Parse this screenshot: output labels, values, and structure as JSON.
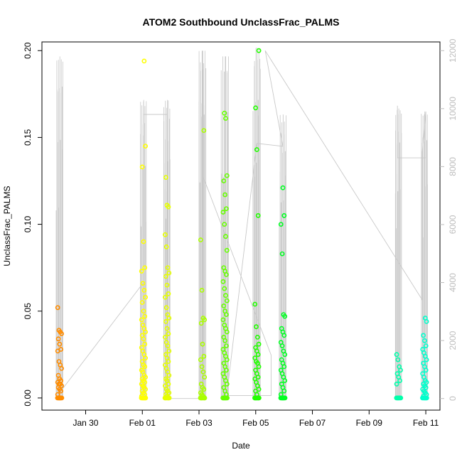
{
  "chart_data": {
    "type": "scatter",
    "title": "ATOM2 Southbound UnclassFrac_PALMS",
    "xlabel": "Date",
    "ylabel": "UnclassFrac_PALMS",
    "xlim": [
      "2017-01-28T11:00",
      "2017-02-11T12:00"
    ],
    "ylim": [
      -0.007,
      0.205
    ],
    "y2lim": [
      -400,
      12300
    ],
    "x_ticks": [
      {
        "x": "2017-01-30",
        "label": "Jan 30"
      },
      {
        "x": "2017-02-01",
        "label": "Feb 01"
      },
      {
        "x": "2017-02-03",
        "label": "Feb 03"
      },
      {
        "x": "2017-02-05",
        "label": "Feb 05"
      },
      {
        "x": "2017-02-07",
        "label": "Feb 07"
      },
      {
        "x": "2017-02-09",
        "label": "Feb 09"
      },
      {
        "x": "2017-02-11",
        "label": "Feb 11"
      }
    ],
    "y_ticks": [
      {
        "y": 0.0,
        "label": "0.00"
      },
      {
        "y": 0.05,
        "label": "0.05"
      },
      {
        "y": 0.1,
        "label": "0.10"
      },
      {
        "y": 0.15,
        "label": "0.15"
      },
      {
        "y": 0.2,
        "label": "0.20"
      }
    ],
    "y2_ticks": [
      {
        "y": 0,
        "label": "0"
      },
      {
        "y": 2000,
        "label": "2000"
      },
      {
        "x": null,
        "y": 4000,
        "label": "4000"
      },
      {
        "y": 6000,
        "label": "6000"
      },
      {
        "y": 8000,
        "label": "8000"
      },
      {
        "y": 10000,
        "label": "10000"
      },
      {
        "y": 12000,
        "label": "12000"
      }
    ],
    "altitude_color": "#c8c8c8",
    "flights": [
      {
        "name": "flight-jan29",
        "center": "2017-01-29T02:00",
        "color": "#ff8c00",
        "ymax": 0.052,
        "values": [
          0.052,
          0.039,
          0.038,
          0.037,
          0.034,
          0.031,
          0.028,
          0.027,
          0.021,
          0.019,
          0.017,
          0.013,
          0.011,
          0.01,
          0.009,
          0.008,
          0.008,
          0.007,
          0.006,
          0.005,
          0.004,
          0.002,
          0.0,
          0.0
        ],
        "alt_max": 11800
      },
      {
        "name": "flight-feb01a",
        "center": "2017-02-01T01:00",
        "color": "#ffff00",
        "ymax": 0.194,
        "values": [
          0.194,
          0.145,
          0.133,
          0.09,
          0.075,
          0.073,
          0.066,
          0.062,
          0.058,
          0.055,
          0.05,
          0.047,
          0.045,
          0.042,
          0.04,
          0.038,
          0.036,
          0.034,
          0.031,
          0.029,
          0.027,
          0.025,
          0.023,
          0.021,
          0.019,
          0.018,
          0.016,
          0.015,
          0.013,
          0.012,
          0.011,
          0.01,
          0.009,
          0.008,
          0.007,
          0.006,
          0.005,
          0.004,
          0.003,
          0.002,
          0.001,
          0.0,
          0.0,
          0.0
        ],
        "alt_max": 10300
      },
      {
        "name": "flight-feb01b",
        "center": "2017-02-01T21:00",
        "color": "#e6ff00",
        "ymax": 0.127,
        "values": [
          0.127,
          0.111,
          0.11,
          0.094,
          0.087,
          0.075,
          0.072,
          0.07,
          0.065,
          0.06,
          0.058,
          0.052,
          0.048,
          0.046,
          0.044,
          0.04,
          0.037,
          0.035,
          0.032,
          0.03,
          0.027,
          0.025,
          0.023,
          0.021,
          0.019,
          0.017,
          0.015,
          0.013,
          0.011,
          0.01,
          0.008,
          0.007,
          0.005,
          0.004,
          0.003,
          0.002,
          0.001,
          0.0,
          0.0
        ],
        "alt_max": 10300
      },
      {
        "name": "flight-feb03a",
        "center": "2017-02-03T03:00",
        "color": "#aaff00",
        "ymax": 0.154,
        "values": [
          0.154,
          0.091,
          0.062,
          0.046,
          0.045,
          0.043,
          0.031,
          0.024,
          0.022,
          0.018,
          0.015,
          0.012,
          0.008,
          0.006,
          0.005,
          0.003,
          0.002,
          0.001,
          0.0,
          0.0
        ],
        "alt_max": 12000
      },
      {
        "name": "flight-feb04",
        "center": "2017-02-03T22:00",
        "color": "#66ff00",
        "ymax": 0.164,
        "values": [
          0.164,
          0.161,
          0.128,
          0.125,
          0.117,
          0.109,
          0.107,
          0.1,
          0.093,
          0.085,
          0.075,
          0.073,
          0.071,
          0.067,
          0.063,
          0.059,
          0.056,
          0.053,
          0.05,
          0.048,
          0.045,
          0.042,
          0.04,
          0.038,
          0.035,
          0.033,
          0.03,
          0.028,
          0.026,
          0.024,
          0.022,
          0.02,
          0.018,
          0.016,
          0.014,
          0.012,
          0.01,
          0.008,
          0.006,
          0.004,
          0.002,
          0.0,
          0.0,
          0.0
        ],
        "alt_max": 11800
      },
      {
        "name": "flight-feb05",
        "center": "2017-02-05T01:00",
        "color": "#22ff00",
        "ymax": 0.2,
        "values": [
          0.2,
          0.167,
          0.143,
          0.105,
          0.054,
          0.041,
          0.035,
          0.031,
          0.029,
          0.027,
          0.025,
          0.023,
          0.021,
          0.02,
          0.018,
          0.016,
          0.014,
          0.012,
          0.011,
          0.009,
          0.007,
          0.005,
          0.004,
          0.002,
          0.0,
          0.0,
          0.0
        ],
        "alt_max": 12100
      },
      {
        "name": "flight-feb06",
        "center": "2017-02-05T23:00",
        "color": "#00ff22",
        "ymax": 0.121,
        "values": [
          0.121,
          0.105,
          0.1,
          0.083,
          0.048,
          0.047,
          0.04,
          0.038,
          0.036,
          0.032,
          0.03,
          0.027,
          0.025,
          0.022,
          0.02,
          0.018,
          0.016,
          0.014,
          0.012,
          0.01,
          0.008,
          0.006,
          0.004,
          0.002,
          0.0,
          0.0
        ],
        "alt_max": 9800
      },
      {
        "name": "flight-feb10",
        "center": "2017-02-10T01:00",
        "color": "#00ffaa",
        "ymax": 0.025,
        "values": [
          0.025,
          0.022,
          0.018,
          0.016,
          0.014,
          0.012,
          0.01,
          0.008,
          0.0
        ],
        "alt_max": 10000
      },
      {
        "name": "flight-feb11",
        "center": "2017-02-10T23:00",
        "color": "#00ffcc",
        "ymax": 0.046,
        "values": [
          0.046,
          0.044,
          0.036,
          0.033,
          0.03,
          0.028,
          0.026,
          0.024,
          0.022,
          0.02,
          0.018,
          0.016,
          0.014,
          0.012,
          0.01,
          0.009,
          0.008,
          0.007,
          0.006,
          0.005,
          0.004,
          0.003,
          0.002,
          0.001,
          0.0,
          0.0
        ],
        "alt_max": 9900
      }
    ],
    "altitude_path": [
      [
        "2017-01-29T02:00",
        200
      ],
      [
        "2017-02-01T01:00",
        4000
      ],
      [
        "2017-02-01T01:00",
        9800
      ],
      [
        "2017-02-01T21:00",
        9800
      ],
      [
        "2017-02-01T21:00",
        0
      ],
      [
        "2017-02-03T03:00",
        0
      ],
      [
        "2017-02-03T03:00",
        12000
      ],
      [
        "2017-02-03T03:00",
        7700
      ],
      [
        "2017-02-05T13:00",
        1500
      ],
      [
        "2017-02-05T13:00",
        100
      ],
      [
        "2017-02-04T00:00",
        100
      ],
      [
        "2017-02-04T00:00",
        300
      ],
      [
        "2017-02-05T01:00",
        8800
      ],
      [
        "2017-02-05T23:00",
        8700
      ],
      [
        "2017-02-05T08:00",
        12000
      ],
      [
        "2017-02-10T21:00",
        3400
      ],
      [
        "2017-02-10T21:00",
        8500
      ],
      [
        "2017-02-11T00:00",
        9900
      ],
      [
        "2017-02-11T00:00",
        8300
      ],
      [
        "2017-02-10T00:00",
        8300
      ],
      [
        "2017-02-10T00:00",
        10100
      ]
    ]
  }
}
